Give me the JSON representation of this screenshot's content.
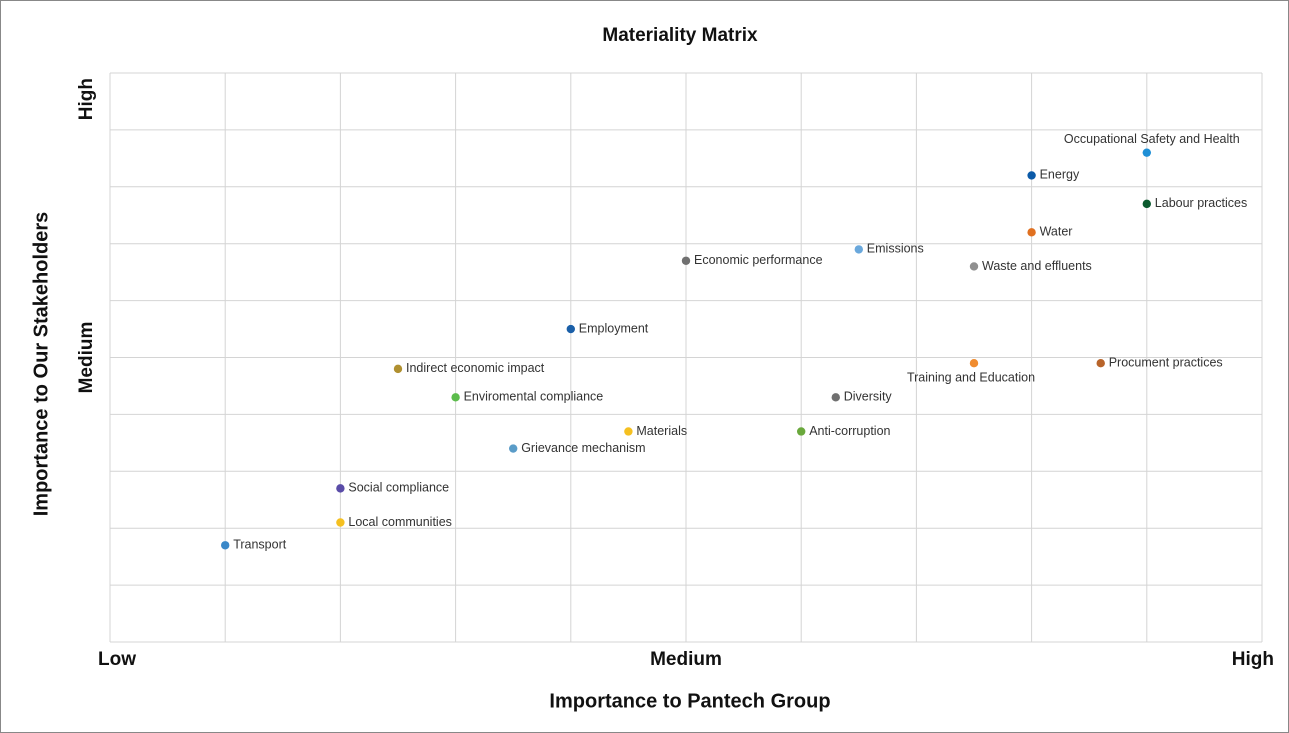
{
  "chart_data": {
    "type": "scatter",
    "title": "Materiality Matrix",
    "x_label": "Importance to Pantech Group",
    "y_label": "Importance to Our Stakeholders",
    "xlim": [
      0,
      10
    ],
    "ylim": [
      0,
      10
    ],
    "xticks": [
      {
        "value": 0,
        "label": "Low"
      },
      {
        "value": 5,
        "label": "Medium"
      },
      {
        "value": 10,
        "label": "High"
      }
    ],
    "yticks": [
      {
        "value": 5,
        "label": "Medium"
      },
      {
        "value": 10,
        "label": "High"
      }
    ],
    "xgrid": [
      0,
      1,
      2,
      3,
      4,
      5,
      6,
      7,
      8,
      9,
      10
    ],
    "ygrid": [
      0,
      1,
      2,
      3,
      4,
      5,
      6,
      7,
      8,
      9,
      10
    ],
    "grid": true,
    "labels": [
      "Occupational Safety and Health",
      "Energy",
      "Labour practices",
      "Water",
      "Emissions",
      "Waste and effluents",
      "Economic performance",
      "Employment",
      "Indirect economic impact",
      "Training and Education",
      "Procument practices",
      "Enviromental compliance",
      "Diversity",
      "Materials",
      "Anti-corruption",
      "Grievance mechanism",
      "Social compliance",
      "Local communities",
      "Transport"
    ],
    "x": [
      9.0,
      8.0,
      9.0,
      8.0,
      6.5,
      7.5,
      5.0,
      4.0,
      2.5,
      7.5,
      8.6,
      3.0,
      6.3,
      4.5,
      6.0,
      3.5,
      2.0,
      2.0,
      1.0
    ],
    "values": [
      8.6,
      8.2,
      7.7,
      7.2,
      6.9,
      6.6,
      6.7,
      5.5,
      4.8,
      4.9,
      4.9,
      4.3,
      4.3,
      3.7,
      3.7,
      3.4,
      2.7,
      2.1,
      1.7
    ],
    "colors": [
      "#1f8fd6",
      "#0b5aa8",
      "#0b5a2e",
      "#e07020",
      "#6aa8dc",
      "#909090",
      "#707070",
      "#1a5fa8",
      "#b09030",
      "#f08c30",
      "#b8642a",
      "#5cbc4c",
      "#707070",
      "#f5c020",
      "#6aa83c",
      "#5a9cc8",
      "#5a4ca8",
      "#f5c020",
      "#3a88c8"
    ]
  }
}
